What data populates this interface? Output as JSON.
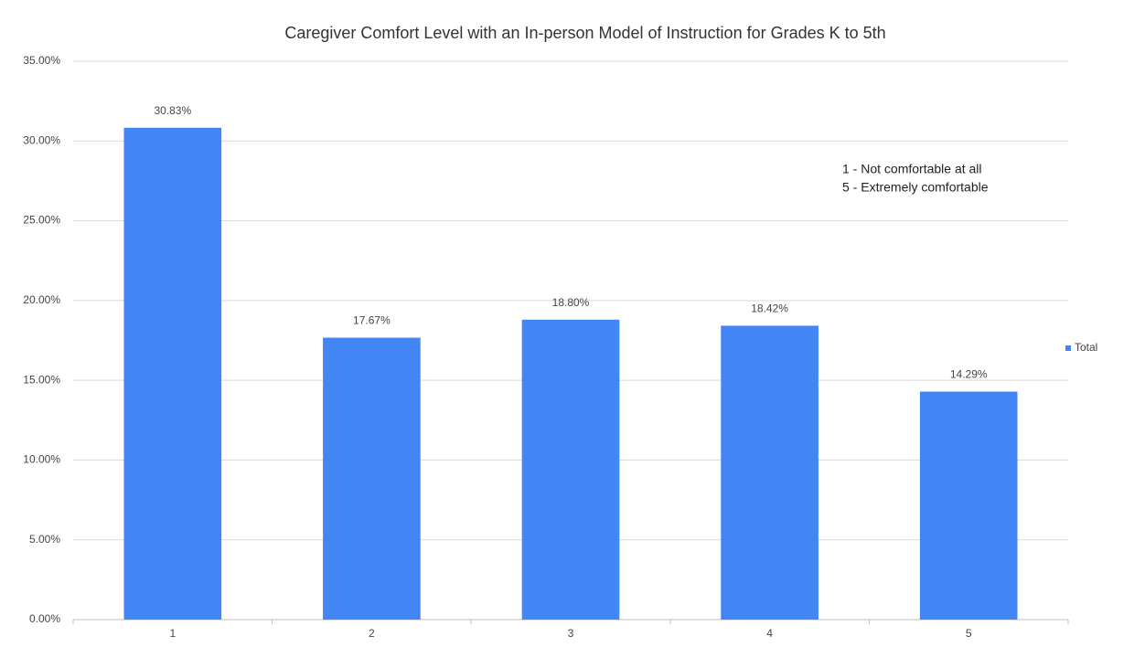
{
  "chart_data": {
    "type": "bar",
    "title": "Caregiver Comfort Level with  an  In-person Model of Instruction for Grades K to 5th",
    "annotations": [
      "1 - Not comfortable at all",
      "5 - Extremely comfortable"
    ],
    "categories": [
      "1",
      "2",
      "3",
      "4",
      "5"
    ],
    "series": [
      {
        "name": "Total",
        "color": "#4285f4",
        "values": [
          30.83,
          17.67,
          18.8,
          18.42,
          14.29
        ],
        "value_labels": [
          "30.83%",
          "17.67%",
          "18.80%",
          "18.42%",
          "14.29%"
        ]
      }
    ],
    "ylim": [
      0,
      35
    ],
    "yticks": [
      {
        "value": 0,
        "label": "0.00%"
      },
      {
        "value": 5,
        "label": "5.00%"
      },
      {
        "value": 10,
        "label": "10.00%"
      },
      {
        "value": 15,
        "label": "15.00%"
      },
      {
        "value": 20,
        "label": "20.00%"
      },
      {
        "value": 25,
        "label": "25.00%"
      },
      {
        "value": 30,
        "label": "30.00%"
      },
      {
        "value": 35,
        "label": "35.00%"
      }
    ],
    "grid": true,
    "legend": "right"
  }
}
